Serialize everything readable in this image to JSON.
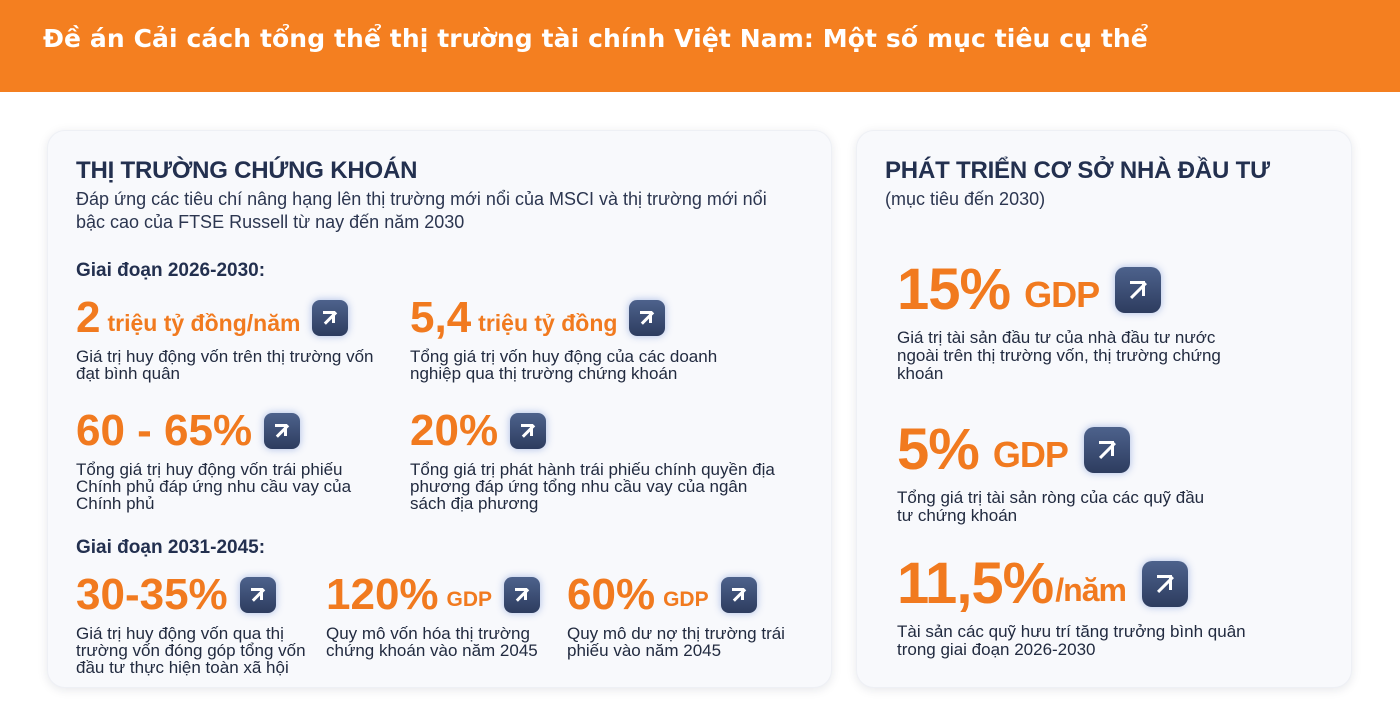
{
  "header": {
    "title": "Đề án Cải cách tổng thể thị trường tài chính Việt Nam: Một số mục tiêu cụ thể"
  },
  "stock_market": {
    "title": "THỊ TRƯỜNG CHỨNG KHOÁN",
    "subtitle": "Đáp ứng các tiêu chí nâng hạng lên thị trường mới nổi của MSCI và thị trường mới nổi bậc cao của FTSE Russell từ nay đến năm 2030",
    "phase1": {
      "label": "Giai đoạn 2026-2030:",
      "items": [
        {
          "value": "2",
          "unit": "triệu tỷ đồng/năm",
          "desc": "Giá trị huy động vốn trên thị trường vốn đạt bình quân",
          "icon": "arrow-up-right-icon"
        },
        {
          "value": "5,4",
          "unit": "triệu tỷ đồng",
          "desc": "Tổng giá trị vốn huy động của các doanh nghiệp qua thị trường chứng khoán",
          "icon": "arrow-up-right-icon"
        },
        {
          "value": "60 - 65%",
          "unit": "",
          "desc": "Tổng giá trị huy động vốn trái phiếu Chính phủ đáp ứng nhu cầu vay của Chính phủ",
          "icon": "arrow-up-right-icon"
        },
        {
          "value": "20%",
          "unit": "",
          "desc": "Tổng giá trị phát hành trái phiếu chính quyền địa phương đáp ứng tổng nhu cầu vay của ngân sách địa phương",
          "icon": "arrow-up-right-icon"
        }
      ]
    },
    "phase2": {
      "label": "Giai đoạn 2031-2045:",
      "items": [
        {
          "value": "30-35%",
          "unit": "",
          "desc": "Giá trị huy động vốn qua thị trường vốn đóng góp tổng vốn đầu tư thực hiện toàn xã hội",
          "icon": "arrow-up-right-icon"
        },
        {
          "value": "120%",
          "unit": "GDP",
          "desc": "Quy mô vốn hóa thị trường chứng khoán vào năm 2045",
          "icon": "arrow-up-right-icon"
        },
        {
          "value": "60%",
          "unit": "GDP",
          "desc": "Quy mô dư nợ thị trường trái phiếu vào năm 2045",
          "icon": "arrow-up-right-icon"
        }
      ]
    }
  },
  "investor_base": {
    "title": "PHÁT TRIỂN CƠ SỞ NHÀ ĐẦU TƯ",
    "subtitle": "(mục tiêu đến 2030)",
    "items": [
      {
        "value": "15%",
        "unit": "GDP",
        "desc": "Giá trị tài sản đầu tư của nhà đầu tư nước ngoài trên thị trường vốn, thị trường chứng khoán",
        "icon": "arrow-up-right-icon"
      },
      {
        "value": "5%",
        "unit": "GDP",
        "desc": "Tổng giá trị tài sản ròng của các quỹ đầu tư chứng khoán",
        "icon": "arrow-up-right-icon"
      },
      {
        "value": "11,5%",
        "unit": "/năm",
        "desc": "Tài sản các quỹ hưu trí tăng trưởng bình quân trong giai đoạn 2026-2030",
        "icon": "arrow-up-right-icon"
      }
    ]
  },
  "colors": {
    "header_bg": "#f47f20",
    "accent_orange": "#f17a1f",
    "navy": "#23304f",
    "card_bg": "#f8f9fc"
  }
}
